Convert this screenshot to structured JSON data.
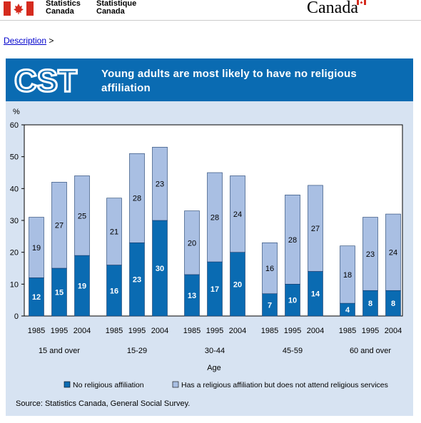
{
  "header": {
    "sig_en_1": "Statistics",
    "sig_en_2": "Canada",
    "sig_fr_1": "Statistique",
    "sig_fr_2": "Canada",
    "wordmark": "Canada"
  },
  "breadcrumb": {
    "link": "Description",
    "separator": ">"
  },
  "banner": {
    "logo_text": "CST",
    "title": "Young adults are most likely to have no religious affiliation"
  },
  "source": "Source: Statistics Canada, General Social Survey.",
  "colors": {
    "banner": "#0a6bb2",
    "panel": "#d7e3f2",
    "no_affiliation": "#0a6bb2",
    "affiliation_no_attend": "#a9bfe3"
  },
  "chart_data": {
    "type": "bar",
    "stacked": true,
    "ylabel": "%",
    "xlabel": "Age",
    "ylim": [
      0,
      60
    ],
    "yticks": [
      "0",
      "10",
      "20",
      "30",
      "40",
      "50",
      "60"
    ],
    "groups": [
      {
        "label": "15 and over",
        "years": [
          "1985",
          "1995",
          "2004"
        ],
        "no_affiliation": [
          12,
          15,
          19
        ],
        "affiliation_no_attend": [
          19,
          27,
          25
        ]
      },
      {
        "label": "15-29",
        "years": [
          "1985",
          "1995",
          "2004"
        ],
        "no_affiliation": [
          16,
          23,
          30
        ],
        "affiliation_no_attend": [
          21,
          28,
          23
        ]
      },
      {
        "label": "30-44",
        "years": [
          "1985",
          "1995",
          "2004"
        ],
        "no_affiliation": [
          13,
          17,
          20
        ],
        "affiliation_no_attend": [
          20,
          28,
          24
        ]
      },
      {
        "label": "45-59",
        "years": [
          "1985",
          "1995",
          "2004"
        ],
        "no_affiliation": [
          7,
          10,
          14
        ],
        "affiliation_no_attend": [
          16,
          28,
          27
        ]
      },
      {
        "label": "60 and over",
        "years": [
          "1985",
          "1995",
          "2004"
        ],
        "no_affiliation": [
          4,
          8,
          8
        ],
        "affiliation_no_attend": [
          18,
          23,
          24
        ]
      }
    ],
    "legend": [
      "No religious affiliation",
      "Has a religious affiliation but does not attend religious services"
    ],
    "legend_position": "bottom"
  }
}
